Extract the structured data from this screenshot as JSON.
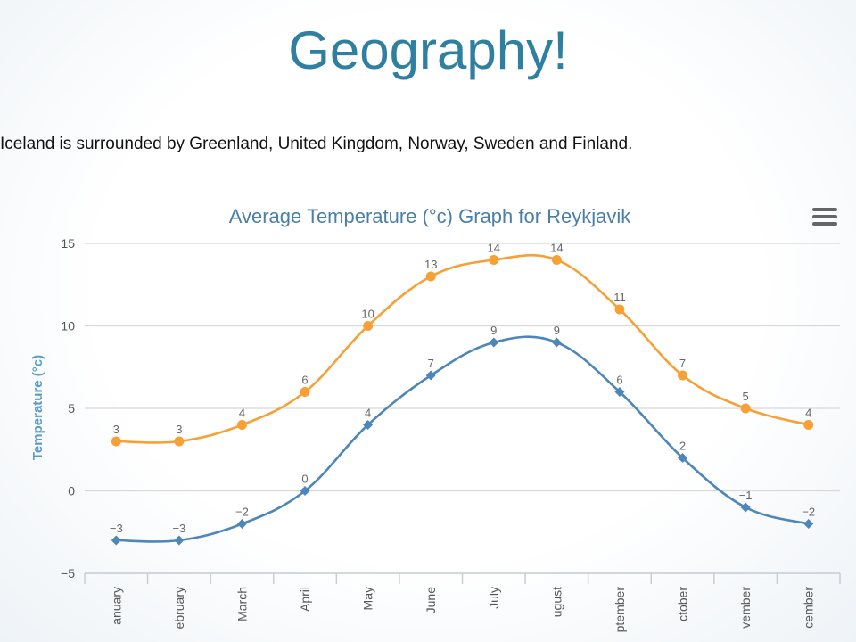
{
  "slide": {
    "title": "Geography!",
    "text": "Iceland is surrounded by Greenland, United Kingdom, Norway, Sweden and Finland."
  },
  "icons": {
    "menu": "hamburger-menu-icon"
  },
  "colors": {
    "title": "#2e7fa0",
    "chart_title": "#4a7fa7",
    "high": "#f7a035",
    "low": "#4d86b8",
    "axis_label": "#5b9bc6"
  },
  "chart_data": {
    "type": "line",
    "title": "Average Temperature (°c) Graph for Reykjavik",
    "xlabel": "",
    "ylabel": "Temperature (°c)",
    "categories": [
      "January",
      "February",
      "March",
      "April",
      "May",
      "June",
      "July",
      "August",
      "September",
      "October",
      "November",
      "December"
    ],
    "category_labels_visible": [
      "anuary",
      "ebruary",
      "March",
      "April",
      "May",
      "June",
      "July",
      "ugust",
      "ptember",
      "ctober",
      "vember",
      "cember"
    ],
    "ylim": [
      -5,
      15
    ],
    "yticks": [
      "−5",
      "0",
      "5",
      "10",
      "15"
    ],
    "ytick_values": [
      -5,
      0,
      5,
      10,
      15
    ],
    "grid": true,
    "legend": "none",
    "series": [
      {
        "values": [
          3,
          3,
          4,
          6,
          10,
          13,
          14,
          14,
          11,
          7,
          5,
          4
        ],
        "labels": [
          "3",
          "3",
          "4",
          "6",
          "10",
          "13",
          "14",
          "14",
          "11",
          "7",
          "5",
          "4"
        ],
        "color": "#f7a035",
        "marker": "circle"
      },
      {
        "values": [
          -3,
          -3,
          -2,
          0,
          4,
          7,
          9,
          9,
          6,
          2,
          -1,
          -2
        ],
        "labels": [
          "−3",
          "−3",
          "−2",
          "0",
          "4",
          "7",
          "9",
          "9",
          "6",
          "2",
          "−1",
          "−2"
        ],
        "color": "#4d86b8",
        "marker": "diamond"
      }
    ]
  }
}
